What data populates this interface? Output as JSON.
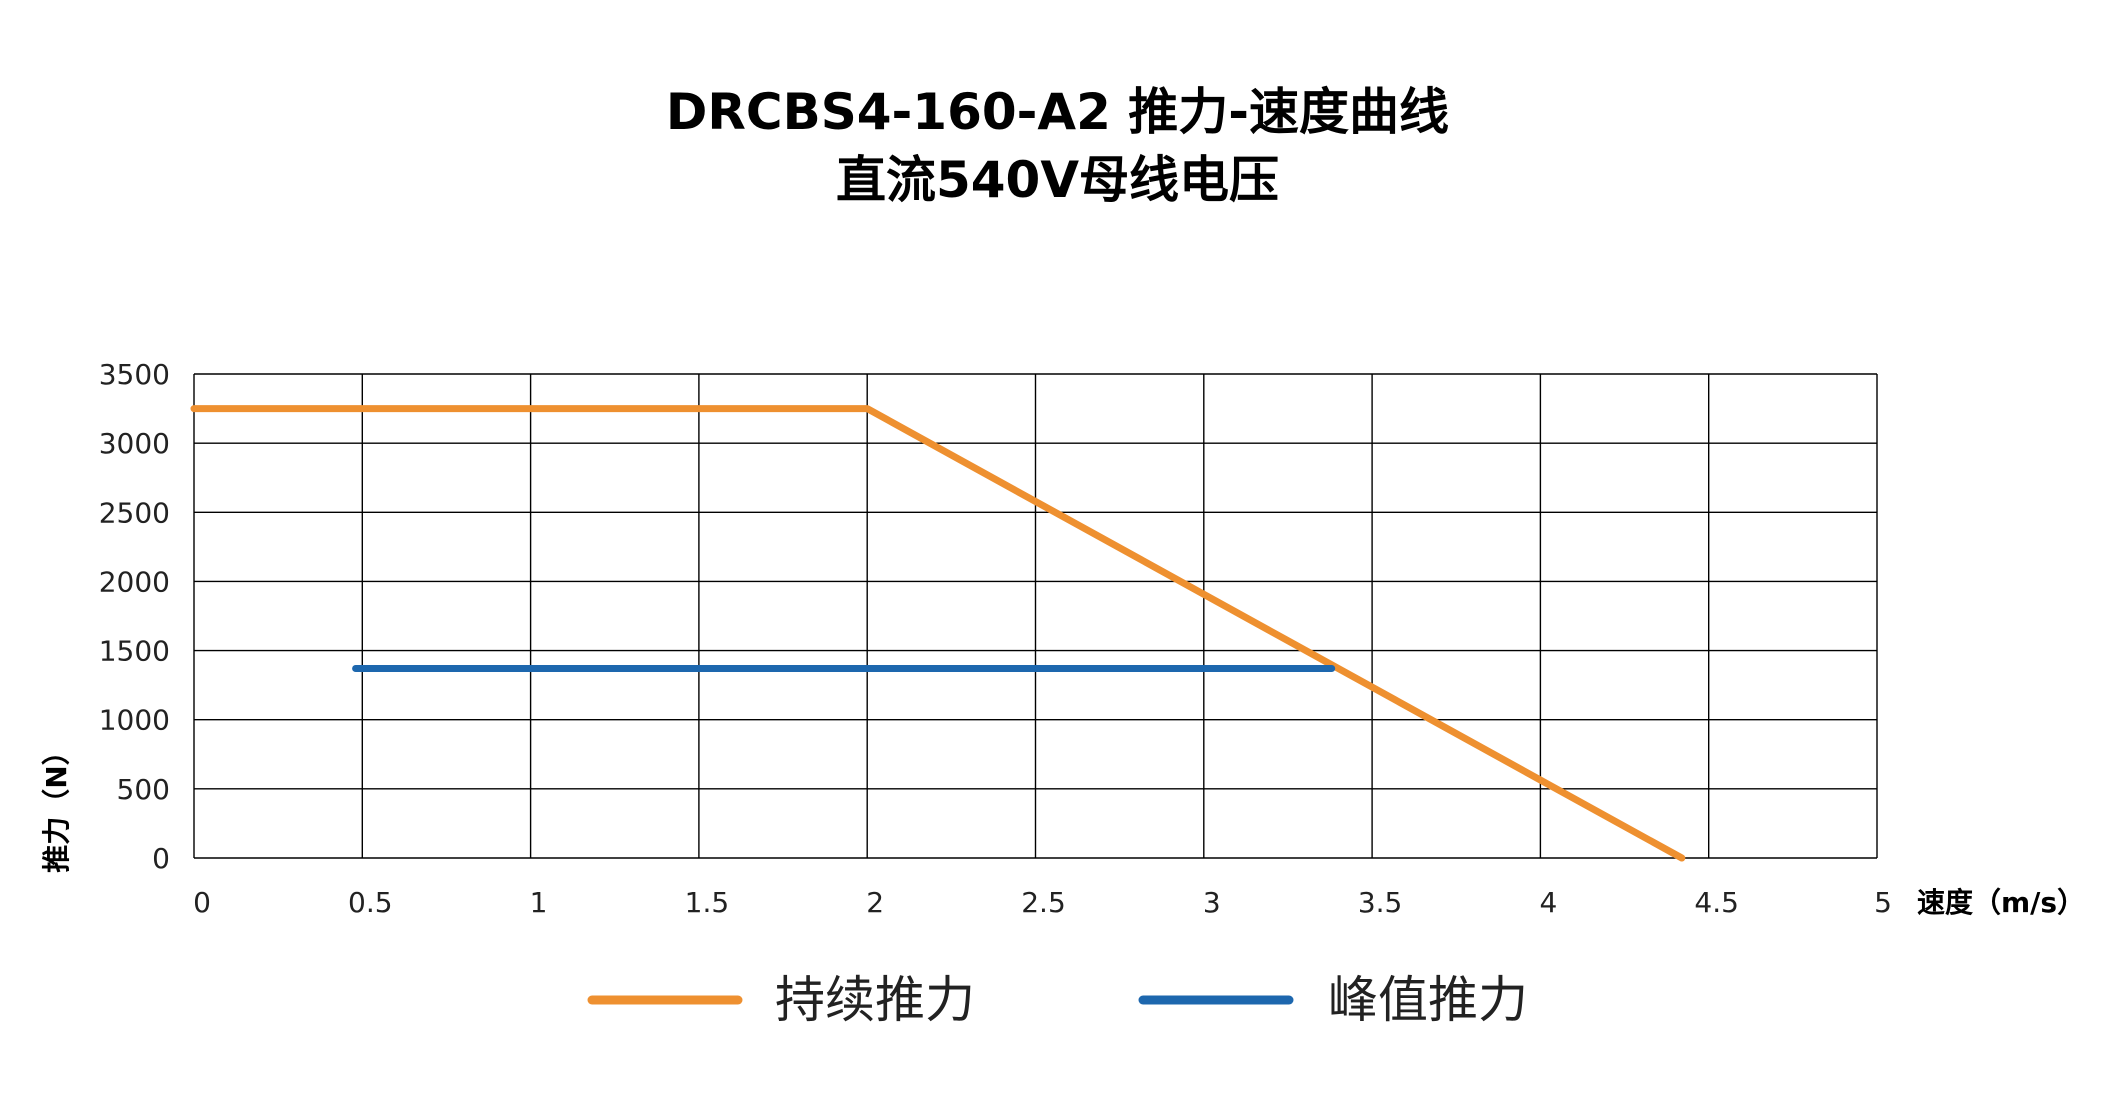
{
  "title": {
    "line1": "DRCBS4-160-A2 推力-速度曲线",
    "line2": "直流540V母线电压"
  },
  "chart_data": {
    "type": "line",
    "xlabel": "速度（m/s）",
    "ylabel": "推力（N）",
    "xlim": [
      0,
      5
    ],
    "ylim": [
      0,
      3500
    ],
    "xticks": [
      "0",
      "0.5",
      "1",
      "1.5",
      "2",
      "2.5",
      "3",
      "3.5",
      "4",
      "4.5",
      "5"
    ],
    "yticks": [
      "0",
      "500",
      "1000",
      "1500",
      "2000",
      "2500",
      "3000",
      "3500"
    ],
    "grid": true,
    "legend_position": "bottom",
    "series": [
      {
        "name": "持续推力",
        "color": "#EE9030",
        "points": [
          [
            0,
            3250
          ],
          [
            2.0,
            3250
          ],
          [
            4.42,
            0
          ]
        ]
      },
      {
        "name": "峰值推力",
        "color": "#1D67AE",
        "points": [
          [
            0.48,
            1370
          ],
          [
            3.38,
            1370
          ]
        ]
      }
    ]
  }
}
